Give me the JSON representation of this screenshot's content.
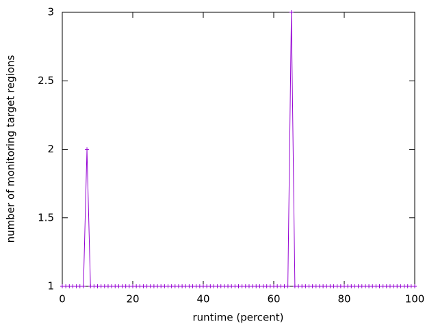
{
  "chart_data": {
    "type": "linepoints",
    "xlabel": "runtime (percent)",
    "ylabel": "number of monitoring target regions",
    "color": "#9400d3",
    "x": [
      0,
      1,
      2,
      3,
      4,
      5,
      6,
      7,
      8,
      9,
      10,
      11,
      12,
      13,
      14,
      15,
      16,
      17,
      18,
      19,
      20,
      21,
      22,
      23,
      24,
      25,
      26,
      27,
      28,
      29,
      30,
      31,
      32,
      33,
      34,
      35,
      36,
      37,
      38,
      39,
      40,
      41,
      42,
      43,
      44,
      45,
      46,
      47,
      48,
      49,
      50,
      51,
      52,
      53,
      54,
      55,
      56,
      57,
      58,
      59,
      60,
      61,
      62,
      63,
      64,
      65,
      66,
      67,
      68,
      69,
      70,
      71,
      72,
      73,
      74,
      75,
      76,
      77,
      78,
      79,
      80,
      81,
      82,
      83,
      84,
      85,
      86,
      87,
      88,
      89,
      90,
      91,
      92,
      93,
      94,
      95,
      96,
      97,
      98,
      99,
      100
    ],
    "values": [
      1,
      1,
      1,
      1,
      1,
      1,
      1,
      2,
      1,
      1,
      1,
      1,
      1,
      1,
      1,
      1,
      1,
      1,
      1,
      1,
      1,
      1,
      1,
      1,
      1,
      1,
      1,
      1,
      1,
      1,
      1,
      1,
      1,
      1,
      1,
      1,
      1,
      1,
      1,
      1,
      1,
      1,
      1,
      1,
      1,
      1,
      1,
      1,
      1,
      1,
      1,
      1,
      1,
      1,
      1,
      1,
      1,
      1,
      1,
      1,
      1,
      1,
      1,
      1,
      1,
      3,
      1,
      1,
      1,
      1,
      1,
      1,
      1,
      1,
      1,
      1,
      1,
      1,
      1,
      1,
      1,
      1,
      1,
      1,
      1,
      1,
      1,
      1,
      1,
      1,
      1,
      1,
      1,
      1,
      1,
      1,
      1,
      1,
      1,
      1,
      1
    ],
    "xlim": [
      0,
      100
    ],
    "xticks": [
      0,
      20,
      40,
      60,
      80,
      100
    ],
    "ylim": [
      1,
      3
    ],
    "yticks": [
      1,
      1.5,
      2,
      2.5,
      3
    ]
  }
}
